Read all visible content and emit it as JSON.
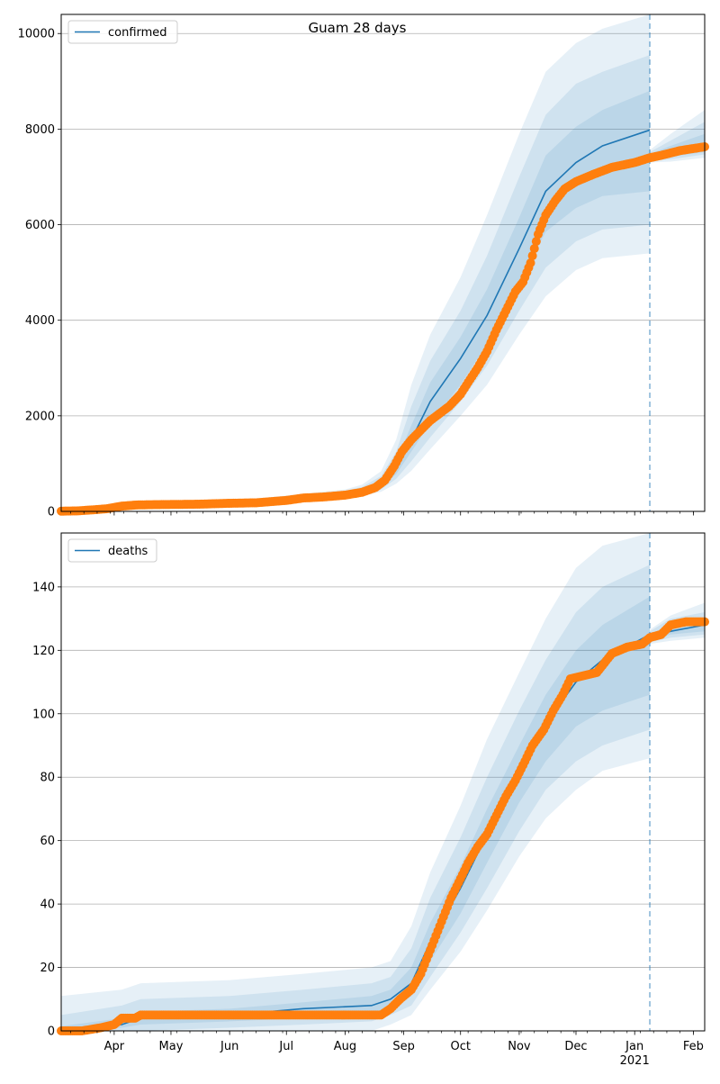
{
  "figure": {
    "title": "Guam 28 days",
    "colors": {
      "model": "#1f77b4",
      "observed": "#ff7f0e",
      "grid": "#b0b0b0",
      "axis": "#000000"
    }
  },
  "x_axis": {
    "month_ticks": [
      {
        "date": "2020-04-01",
        "label": "Apr"
      },
      {
        "date": "2020-05-01",
        "label": "May"
      },
      {
        "date": "2020-06-01",
        "label": "Jun"
      },
      {
        "date": "2020-07-01",
        "label": "Jul"
      },
      {
        "date": "2020-08-01",
        "label": "Aug"
      },
      {
        "date": "2020-09-01",
        "label": "Sep"
      },
      {
        "date": "2020-10-01",
        "label": "Oct"
      },
      {
        "date": "2020-11-01",
        "label": "Nov"
      },
      {
        "date": "2020-12-01",
        "label": "Dec"
      },
      {
        "date": "2021-01-01",
        "label": "Jan",
        "sublabel": "2021"
      },
      {
        "date": "2021-02-01",
        "label": "Feb"
      }
    ],
    "range": [
      "2020-03-04",
      "2021-02-07"
    ],
    "forecast_start": "2021-01-09"
  },
  "chart_data": [
    {
      "type": "line",
      "panel": "confirmed",
      "legend": "confirmed",
      "legend_position": "top-left",
      "grid": "horizontal",
      "ylim": [
        0,
        10400
      ],
      "yticks": [
        0,
        2000,
        4000,
        6000,
        8000,
        10000
      ],
      "model": [
        {
          "date": "2020-03-04",
          "y": 10,
          "q50": [
            0,
            30
          ],
          "q80": [
            0,
            45
          ],
          "q95": [
            0,
            60
          ]
        },
        {
          "date": "2020-03-20",
          "y": 30,
          "q50": [
            15,
            50
          ],
          "q80": [
            5,
            70
          ],
          "q95": [
            0,
            90
          ]
        },
        {
          "date": "2020-04-05",
          "y": 100,
          "q50": [
            75,
            125
          ],
          "q80": [
            55,
            150
          ],
          "q95": [
            40,
            175
          ]
        },
        {
          "date": "2020-04-20",
          "y": 140,
          "q50": [
            120,
            165
          ],
          "q80": [
            105,
            185
          ],
          "q95": [
            90,
            205
          ]
        },
        {
          "date": "2020-05-15",
          "y": 160,
          "q50": [
            140,
            185
          ],
          "q80": [
            125,
            205
          ],
          "q95": [
            110,
            225
          ]
        },
        {
          "date": "2020-06-15",
          "y": 190,
          "q50": [
            165,
            215
          ],
          "q80": [
            150,
            240
          ],
          "q95": [
            135,
            265
          ]
        },
        {
          "date": "2020-07-10",
          "y": 290,
          "q50": [
            260,
            320
          ],
          "q80": [
            240,
            345
          ],
          "q95": [
            220,
            370
          ]
        },
        {
          "date": "2020-08-01",
          "y": 360,
          "q50": [
            325,
            400
          ],
          "q80": [
            300,
            430
          ],
          "q95": [
            275,
            460
          ]
        },
        {
          "date": "2020-08-10",
          "y": 420,
          "q50": [
            385,
            470
          ],
          "q80": [
            355,
            510
          ],
          "q95": [
            325,
            560
          ]
        },
        {
          "date": "2020-08-20",
          "y": 580,
          "q50": [
            510,
            660
          ],
          "q80": [
            460,
            740
          ],
          "q95": [
            410,
            840
          ]
        },
        {
          "date": "2020-08-28",
          "y": 900,
          "q50": [
            780,
            1050
          ],
          "q80": [
            680,
            1250
          ],
          "q95": [
            580,
            1500
          ]
        },
        {
          "date": "2020-09-05",
          "y": 1500,
          "q50": [
            1250,
            1800
          ],
          "q80": [
            1050,
            2200
          ],
          "q95": [
            850,
            2650
          ]
        },
        {
          "date": "2020-09-15",
          "y": 2300,
          "q50": [
            1850,
            2700
          ],
          "q80": [
            1550,
            3150
          ],
          "q95": [
            1300,
            3700
          ]
        },
        {
          "date": "2020-10-01",
          "y": 3200,
          "q50": [
            2650,
            3650
          ],
          "q80": [
            2300,
            4200
          ],
          "q95": [
            2000,
            4900
          ]
        },
        {
          "date": "2020-10-15",
          "y": 4100,
          "q50": [
            3500,
            4650
          ],
          "q80": [
            3050,
            5350
          ],
          "q95": [
            2650,
            6200
          ]
        },
        {
          "date": "2020-11-01",
          "y": 5500,
          "q50": [
            4800,
            6150
          ],
          "q80": [
            4200,
            7000
          ],
          "q95": [
            3700,
            7900
          ]
        },
        {
          "date": "2020-11-15",
          "y": 6700,
          "q50": [
            5850,
            7450
          ],
          "q80": [
            5100,
            8300
          ],
          "q95": [
            4500,
            9200
          ]
        },
        {
          "date": "2020-12-01",
          "y": 7300,
          "q50": [
            6350,
            8050
          ],
          "q80": [
            5650,
            8950
          ],
          "q95": [
            5050,
            9800
          ]
        },
        {
          "date": "2020-12-15",
          "y": 7650,
          "q50": [
            6600,
            8400
          ],
          "q80": [
            5900,
            9200
          ],
          "q95": [
            5300,
            10100
          ]
        },
        {
          "date": "2021-01-09",
          "y": 7980,
          "q50": [
            6700,
            8800
          ],
          "q80": [
            6000,
            9550
          ],
          "q95": [
            5400,
            10400
          ]
        },
        {
          "date": "2021-01-09",
          "y": 7420,
          "q50": [
            7360,
            7480
          ],
          "q80": [
            7330,
            7520
          ],
          "q95": [
            7300,
            7560
          ]
        },
        {
          "date": "2021-01-20",
          "y": 7520,
          "q50": [
            7420,
            7650
          ],
          "q80": [
            7370,
            7760
          ],
          "q95": [
            7320,
            7900
          ]
        },
        {
          "date": "2021-02-07",
          "y": 7630,
          "q50": [
            7520,
            7900
          ],
          "q80": [
            7470,
            8150
          ],
          "q95": [
            7400,
            8400
          ]
        }
      ],
      "observed": [
        {
          "date": "2020-03-04",
          "y": 5
        },
        {
          "date": "2020-03-12",
          "y": 10
        },
        {
          "date": "2020-03-20",
          "y": 30
        },
        {
          "date": "2020-03-28",
          "y": 55
        },
        {
          "date": "2020-04-05",
          "y": 110
        },
        {
          "date": "2020-04-13",
          "y": 135
        },
        {
          "date": "2020-04-21",
          "y": 140
        },
        {
          "date": "2020-05-01",
          "y": 145
        },
        {
          "date": "2020-05-15",
          "y": 150
        },
        {
          "date": "2020-06-01",
          "y": 170
        },
        {
          "date": "2020-06-15",
          "y": 180
        },
        {
          "date": "2020-07-01",
          "y": 230
        },
        {
          "date": "2020-07-10",
          "y": 280
        },
        {
          "date": "2020-07-20",
          "y": 300
        },
        {
          "date": "2020-08-01",
          "y": 340
        },
        {
          "date": "2020-08-10",
          "y": 400
        },
        {
          "date": "2020-08-17",
          "y": 500
        },
        {
          "date": "2020-08-22",
          "y": 650
        },
        {
          "date": "2020-08-27",
          "y": 950
        },
        {
          "date": "2020-08-31",
          "y": 1250
        },
        {
          "date": "2020-09-05",
          "y": 1500
        },
        {
          "date": "2020-09-10",
          "y": 1700
        },
        {
          "date": "2020-09-15",
          "y": 1900
        },
        {
          "date": "2020-09-20",
          "y": 2050
        },
        {
          "date": "2020-09-25",
          "y": 2200
        },
        {
          "date": "2020-10-01",
          "y": 2450
        },
        {
          "date": "2020-10-05",
          "y": 2700
        },
        {
          "date": "2020-10-10",
          "y": 3000
        },
        {
          "date": "2020-10-15",
          "y": 3350
        },
        {
          "date": "2020-10-20",
          "y": 3800
        },
        {
          "date": "2020-10-25",
          "y": 4200
        },
        {
          "date": "2020-10-30",
          "y": 4600
        },
        {
          "date": "2020-11-03",
          "y": 4800
        },
        {
          "date": "2020-11-07",
          "y": 5200
        },
        {
          "date": "2020-11-11",
          "y": 5800
        },
        {
          "date": "2020-11-15",
          "y": 6200
        },
        {
          "date": "2020-11-20",
          "y": 6500
        },
        {
          "date": "2020-11-25",
          "y": 6750
        },
        {
          "date": "2020-12-01",
          "y": 6900
        },
        {
          "date": "2020-12-10",
          "y": 7050
        },
        {
          "date": "2020-12-20",
          "y": 7200
        },
        {
          "date": "2021-01-01",
          "y": 7300
        },
        {
          "date": "2021-01-09",
          "y": 7400
        },
        {
          "date": "2021-01-15",
          "y": 7450
        },
        {
          "date": "2021-01-25",
          "y": 7550
        },
        {
          "date": "2021-02-07",
          "y": 7630
        }
      ]
    },
    {
      "type": "line",
      "panel": "deaths",
      "legend": "deaths",
      "legend_position": "top-left",
      "grid": "horizontal",
      "ylim": [
        0,
        157
      ],
      "yticks": [
        0,
        20,
        40,
        60,
        80,
        100,
        120,
        140
      ],
      "model": [
        {
          "date": "2020-03-04",
          "y": 0,
          "q50": [
            0,
            1.5
          ],
          "q80": [
            0,
            5
          ],
          "q95": [
            0,
            11
          ]
        },
        {
          "date": "2020-04-05",
          "y": 2,
          "q50": [
            1,
            4
          ],
          "q80": [
            0,
            8
          ],
          "q95": [
            0,
            13
          ]
        },
        {
          "date": "2020-04-15",
          "y": 4,
          "q50": [
            2,
            6
          ],
          "q80": [
            0,
            10
          ],
          "q95": [
            0,
            15
          ]
        },
        {
          "date": "2020-06-01",
          "y": 5,
          "q50": [
            3,
            7
          ],
          "q80": [
            1,
            11
          ],
          "q95": [
            0,
            16
          ]
        },
        {
          "date": "2020-07-10",
          "y": 7,
          "q50": [
            4,
            9
          ],
          "q80": [
            2,
            13
          ],
          "q95": [
            0,
            18
          ]
        },
        {
          "date": "2020-08-15",
          "y": 8,
          "q50": [
            5,
            11
          ],
          "q80": [
            3,
            15
          ],
          "q95": [
            0,
            20
          ]
        },
        {
          "date": "2020-08-25",
          "y": 10,
          "q50": [
            7,
            13
          ],
          "q80": [
            5,
            17
          ],
          "q95": [
            2,
            22
          ]
        },
        {
          "date": "2020-09-05",
          "y": 15,
          "q50": [
            11,
            20
          ],
          "q80": [
            8,
            26
          ],
          "q95": [
            5,
            33
          ]
        },
        {
          "date": "2020-09-15",
          "y": 28,
          "q50": [
            22,
            34
          ],
          "q80": [
            17,
            42
          ],
          "q95": [
            13,
            50
          ]
        },
        {
          "date": "2020-10-01",
          "y": 45,
          "q50": [
            37,
            52
          ],
          "q80": [
            31,
            61
          ],
          "q95": [
            25,
            71
          ]
        },
        {
          "date": "2020-10-15",
          "y": 62,
          "q50": [
            53,
            70
          ],
          "q80": [
            45,
            80
          ],
          "q95": [
            38,
            92
          ]
        },
        {
          "date": "2020-11-01",
          "y": 82,
          "q50": [
            72,
            90
          ],
          "q80": [
            63,
            101
          ],
          "q95": [
            55,
            113
          ]
        },
        {
          "date": "2020-11-15",
          "y": 97,
          "q50": [
            85,
            106
          ],
          "q80": [
            76,
            117
          ],
          "q95": [
            67,
            130
          ]
        },
        {
          "date": "2020-12-01",
          "y": 110,
          "q50": [
            96,
            120
          ],
          "q80": [
            85,
            132
          ],
          "q95": [
            76,
            146
          ]
        },
        {
          "date": "2020-12-15",
          "y": 117,
          "q50": [
            101,
            128
          ],
          "q80": [
            90,
            140
          ],
          "q95": [
            82,
            153
          ]
        },
        {
          "date": "2021-01-09",
          "y": 125,
          "q50": [
            106,
            137
          ],
          "q80": [
            95,
            147
          ],
          "q95": [
            86,
            157
          ]
        },
        {
          "date": "2021-01-09",
          "y": 124,
          "q50": [
            123,
            125
          ],
          "q80": [
            122.5,
            126
          ],
          "q95": [
            122,
            126.5
          ]
        },
        {
          "date": "2021-01-20",
          "y": 126,
          "q50": [
            125,
            128
          ],
          "q80": [
            124,
            130
          ],
          "q95": [
            123,
            131
          ]
        },
        {
          "date": "2021-02-07",
          "y": 128,
          "q50": [
            126,
            130
          ],
          "q80": [
            125,
            132
          ],
          "q95": [
            124,
            135
          ]
        }
      ],
      "observed": [
        {
          "date": "2020-03-04",
          "y": 0
        },
        {
          "date": "2020-03-15",
          "y": 0
        },
        {
          "date": "2020-03-25",
          "y": 1
        },
        {
          "date": "2020-04-01",
          "y": 2
        },
        {
          "date": "2020-04-05",
          "y": 4
        },
        {
          "date": "2020-04-12",
          "y": 4
        },
        {
          "date": "2020-04-15",
          "y": 5
        },
        {
          "date": "2020-05-01",
          "y": 5
        },
        {
          "date": "2020-06-01",
          "y": 5
        },
        {
          "date": "2020-07-01",
          "y": 5
        },
        {
          "date": "2020-08-01",
          "y": 5
        },
        {
          "date": "2020-08-20",
          "y": 5
        },
        {
          "date": "2020-08-25",
          "y": 7
        },
        {
          "date": "2020-08-30",
          "y": 10
        },
        {
          "date": "2020-09-05",
          "y": 13
        },
        {
          "date": "2020-09-10",
          "y": 18
        },
        {
          "date": "2020-09-14",
          "y": 24
        },
        {
          "date": "2020-09-18",
          "y": 30
        },
        {
          "date": "2020-09-22",
          "y": 36
        },
        {
          "date": "2020-09-26",
          "y": 42
        },
        {
          "date": "2020-10-01",
          "y": 48
        },
        {
          "date": "2020-10-05",
          "y": 53
        },
        {
          "date": "2020-10-10",
          "y": 58
        },
        {
          "date": "2020-10-15",
          "y": 62
        },
        {
          "date": "2020-10-20",
          "y": 68
        },
        {
          "date": "2020-10-25",
          "y": 74
        },
        {
          "date": "2020-10-30",
          "y": 79
        },
        {
          "date": "2020-11-04",
          "y": 85
        },
        {
          "date": "2020-11-08",
          "y": 90
        },
        {
          "date": "2020-11-14",
          "y": 95
        },
        {
          "date": "2020-11-19",
          "y": 101
        },
        {
          "date": "2020-11-24",
          "y": 106
        },
        {
          "date": "2020-11-28",
          "y": 111
        },
        {
          "date": "2020-12-05",
          "y": 112
        },
        {
          "date": "2020-12-12",
          "y": 113
        },
        {
          "date": "2020-12-20",
          "y": 119
        },
        {
          "date": "2020-12-28",
          "y": 121
        },
        {
          "date": "2021-01-05",
          "y": 122
        },
        {
          "date": "2021-01-09",
          "y": 124
        },
        {
          "date": "2021-01-15",
          "y": 125
        },
        {
          "date": "2021-01-20",
          "y": 128
        },
        {
          "date": "2021-01-28",
          "y": 129
        },
        {
          "date": "2021-02-07",
          "y": 129
        }
      ]
    }
  ]
}
